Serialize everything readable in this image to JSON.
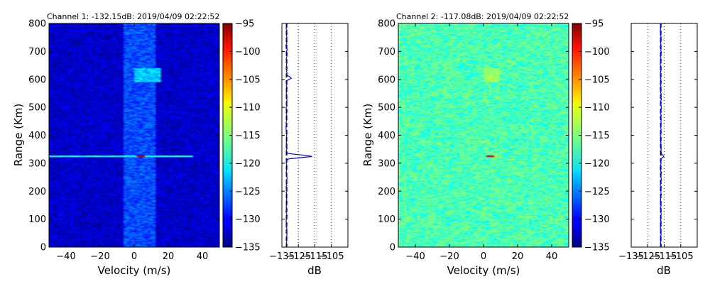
{
  "chart_data": [
    {
      "type": "heatmap",
      "title": "Channel 1: -132.15dB: 2019/04/09 02:22:52",
      "xlabel": "Velocity (m/s)",
      "ylabel": "Range (Km)",
      "xlim": [
        -50,
        50
      ],
      "ylim": [
        0,
        800
      ],
      "xticks": [
        "−40",
        "−20",
        "0",
        "20",
        "40"
      ],
      "xtick_values": [
        -40,
        -20,
        0,
        20,
        40
      ],
      "yticks": [
        "0",
        "100",
        "200",
        "300",
        "400",
        "500",
        "600",
        "700",
        "800"
      ],
      "ytick_values": [
        0,
        100,
        200,
        300,
        400,
        500,
        600,
        700,
        800
      ],
      "colorbar": {
        "colormap": "jet",
        "range": [
          -135,
          -95
        ],
        "ticks": [
          "−95",
          "−100",
          "−105",
          "−110",
          "−115",
          "−120",
          "−125",
          "−130",
          "−135"
        ],
        "tick_values": [
          -95,
          -100,
          -105,
          -110,
          -115,
          -120,
          -125,
          -130,
          -135
        ]
      },
      "noise_floor_db": -132.15,
      "features": [
        {
          "kind": "horizontal_band",
          "range_km": 325,
          "velocity_span": [
            -50,
            35
          ],
          "level_db": -120
        },
        {
          "kind": "hotspot",
          "range_km": 325,
          "velocity": 4,
          "level_db": -97
        },
        {
          "kind": "patch",
          "range_km": [
            590,
            640
          ],
          "velocity": [
            0,
            16
          ],
          "level_db": -122
        },
        {
          "kind": "vertical_streak",
          "velocity": [
            -6,
            12
          ],
          "level_db": -127
        }
      ],
      "profile": {
        "xlabel": "dB",
        "xticks": [
          "−135",
          "−125",
          "−115",
          "−105"
        ],
        "xtick_values": [
          -135,
          -125,
          -115,
          -105
        ],
        "xlim": [
          -135,
          -95
        ],
        "noise_line_db": -132.15,
        "peaks": [
          {
            "range_km": 325,
            "db": -115
          },
          {
            "range_km": 605,
            "db": -129
          }
        ]
      }
    },
    {
      "type": "heatmap",
      "title": "Channel 2: -117.08dB: 2019/04/09 02:22:52",
      "xlabel": "Velocity (m/s)",
      "ylabel": "Range (Km)",
      "xlim": [
        -50,
        50
      ],
      "ylim": [
        0,
        800
      ],
      "xticks": [
        "−40",
        "−20",
        "0",
        "20",
        "40"
      ],
      "xtick_values": [
        -40,
        -20,
        0,
        20,
        40
      ],
      "yticks": [
        "0",
        "100",
        "200",
        "300",
        "400",
        "500",
        "600",
        "700",
        "800"
      ],
      "ytick_values": [
        0,
        100,
        200,
        300,
        400,
        500,
        600,
        700,
        800
      ],
      "colorbar": {
        "colormap": "jet",
        "range": [
          -135,
          -95
        ],
        "ticks": [
          "−95",
          "−100",
          "−105",
          "−110",
          "−115",
          "−120",
          "−125",
          "−130",
          "−135"
        ],
        "tick_values": [
          -95,
          -100,
          -105,
          -110,
          -115,
          -120,
          -125,
          -130,
          -135
        ]
      },
      "noise_floor_db": -117.08,
      "features": [
        {
          "kind": "hotspot",
          "range_km": 325,
          "velocity": 4,
          "level_db": -100
        },
        {
          "kind": "patch",
          "range_km": [
            590,
            640
          ],
          "velocity": [
            0,
            10
          ],
          "level_db": -114
        }
      ],
      "profile": {
        "xlabel": "dB",
        "xticks": [
          "−135",
          "−125",
          "−115",
          "−105"
        ],
        "xtick_values": [
          -135,
          -125,
          -115,
          -105
        ],
        "xlim": [
          -135,
          -95
        ],
        "noise_line_db": -117.08,
        "peaks": [
          {
            "range_km": 325,
            "db": -115
          }
        ]
      }
    }
  ]
}
